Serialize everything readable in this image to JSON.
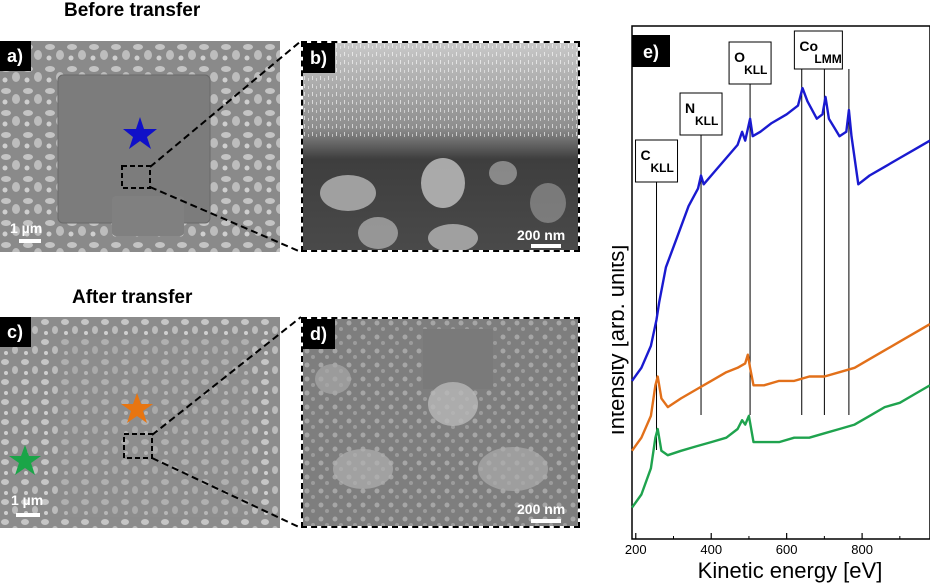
{
  "sections": {
    "before": "Before transfer",
    "after": "After transfer"
  },
  "panels": {
    "a": {
      "label": "a)",
      "scalebar": "1 µm",
      "star_color": "#1010c8"
    },
    "b": {
      "label": "b)",
      "scalebar": "200 nm"
    },
    "c": {
      "label": "c)",
      "scalebar": "1 µm",
      "star_colors": [
        "#e87510",
        "#1aa548"
      ]
    },
    "d": {
      "label": "d)",
      "scalebar": "200 nm"
    },
    "e": {
      "label": "e)"
    }
  },
  "chart_data": {
    "type": "line",
    "xlabel": "Kinetic energy  [eV]",
    "ylabel": "Intensity [arb. units]",
    "xlim": [
      190,
      980
    ],
    "x_ticks": [
      200,
      400,
      600,
      800
    ],
    "y_tick_labels": false,
    "annotations": [
      {
        "main": "C",
        "sub": "KLL",
        "x": 255
      },
      {
        "main": "N",
        "sub": "KLL",
        "x": 373
      },
      {
        "main": "O",
        "sub": "KLL",
        "x": 503
      },
      {
        "main": "Co",
        "sub": "LMM",
        "x_lines": [
          640,
          700,
          765
        ]
      }
    ],
    "series": [
      {
        "color": "#1a1ad0",
        "x": [
          190,
          215,
          240,
          255,
          262,
          280,
          310,
          340,
          365,
          373,
          380,
          410,
          440,
          470,
          482,
          490,
          503,
          510,
          530,
          560,
          600,
          630,
          642,
          655,
          680,
          695,
          703,
          712,
          740,
          758,
          765,
          772,
          790,
          820,
          860,
          900,
          940,
          980
        ],
        "y": [
          0.3,
          0.33,
          0.38,
          0.44,
          0.48,
          0.56,
          0.63,
          0.7,
          0.74,
          0.77,
          0.75,
          0.78,
          0.81,
          0.84,
          0.87,
          0.85,
          0.9,
          0.86,
          0.87,
          0.89,
          0.91,
          0.93,
          0.97,
          0.94,
          0.9,
          0.91,
          0.95,
          0.9,
          0.86,
          0.87,
          0.92,
          0.86,
          0.75,
          0.77,
          0.79,
          0.81,
          0.83,
          0.85
        ]
      },
      {
        "color": "#e2701a",
        "x": [
          190,
          215,
          240,
          252,
          258,
          268,
          285,
          320,
          360,
          400,
          440,
          470,
          490,
          497,
          503,
          512,
          540,
          580,
          620,
          660,
          700,
          740,
          780,
          820,
          860,
          900,
          940,
          980
        ],
        "y": [
          0.14,
          0.17,
          0.22,
          0.29,
          0.31,
          0.26,
          0.24,
          0.26,
          0.28,
          0.3,
          0.32,
          0.33,
          0.34,
          0.36,
          0.33,
          0.29,
          0.29,
          0.3,
          0.3,
          0.31,
          0.31,
          0.32,
          0.33,
          0.35,
          0.37,
          0.39,
          0.41,
          0.43
        ]
      },
      {
        "color": "#1fa34e",
        "x": [
          190,
          215,
          240,
          252,
          258,
          268,
          285,
          320,
          360,
          400,
          440,
          470,
          482,
          490,
          500,
          512,
          540,
          580,
          620,
          660,
          700,
          740,
          780,
          820,
          860,
          900,
          940,
          980
        ],
        "y": [
          0.01,
          0.04,
          0.1,
          0.17,
          0.19,
          0.14,
          0.13,
          0.14,
          0.15,
          0.16,
          0.17,
          0.19,
          0.21,
          0.2,
          0.22,
          0.16,
          0.16,
          0.16,
          0.17,
          0.17,
          0.18,
          0.19,
          0.2,
          0.22,
          0.24,
          0.25,
          0.27,
          0.29
        ]
      }
    ]
  }
}
